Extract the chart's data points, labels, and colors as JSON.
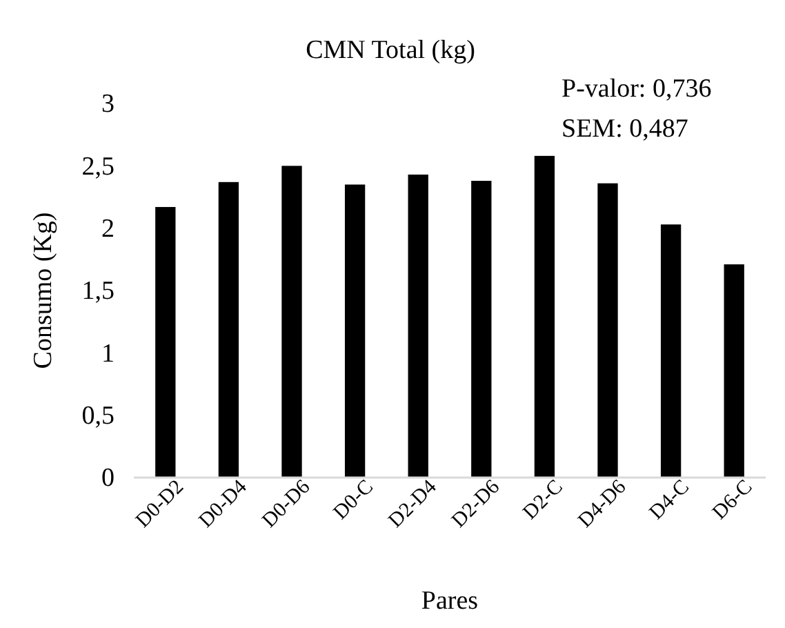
{
  "chart_data": {
    "type": "bar",
    "title": "CMN Total (kg)",
    "xlabel": "Pares",
    "ylabel": "Consumo (Kg)",
    "categories": [
      "D0-D2",
      "D0-D4",
      "D0-D6",
      "D0-C",
      "D2-D4",
      "D2-D6",
      "D2-C",
      "D4-D6",
      "D4-C",
      "D6-C"
    ],
    "values": [
      2.17,
      2.37,
      2.5,
      2.35,
      2.43,
      2.38,
      2.58,
      2.36,
      2.03,
      1.71
    ],
    "color": "#000000",
    "ylim": [
      0,
      3
    ],
    "yticks": [
      {
        "value": 0,
        "label": "0"
      },
      {
        "value": 0.5,
        "label": "0,5"
      },
      {
        "value": 1,
        "label": "1"
      },
      {
        "value": 1.5,
        "label": "1,5"
      },
      {
        "value": 2,
        "label": "2"
      },
      {
        "value": 2.5,
        "label": "2,5"
      },
      {
        "value": 3,
        "label": "3"
      }
    ],
    "annotations": [
      "P-valor: 0,736",
      "SEM: 0,487"
    ]
  }
}
